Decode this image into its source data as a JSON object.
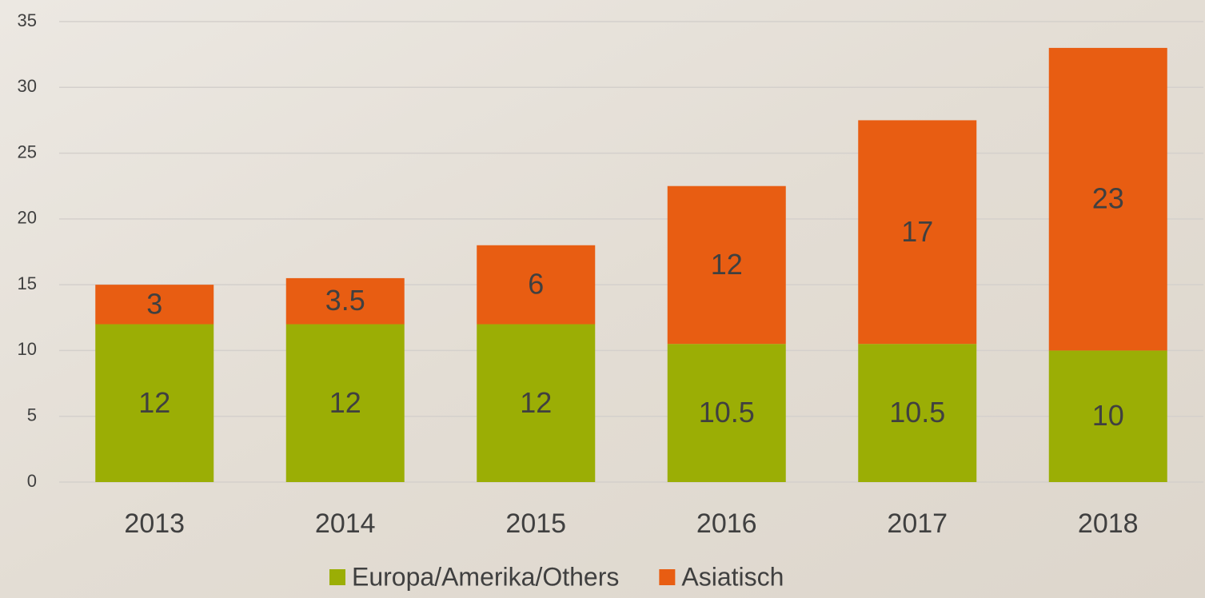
{
  "chart_data": {
    "type": "stacked_bar",
    "categories": [
      "2013",
      "2014",
      "2015",
      "2016",
      "2017",
      "2018"
    ],
    "series": [
      {
        "name": "Europa/Amerika/Others",
        "color": "#9bae05",
        "values": [
          12,
          12,
          12,
          10.5,
          10.5,
          10
        ]
      },
      {
        "name": "Asiatisch",
        "color": "#e85d12",
        "values": [
          3,
          3.5,
          6,
          12,
          17,
          23
        ]
      }
    ],
    "ylim": [
      0,
      35
    ],
    "yticks": [
      0,
      5,
      10,
      15,
      20,
      25,
      30,
      35
    ],
    "grid": true,
    "legend": "bottom"
  }
}
